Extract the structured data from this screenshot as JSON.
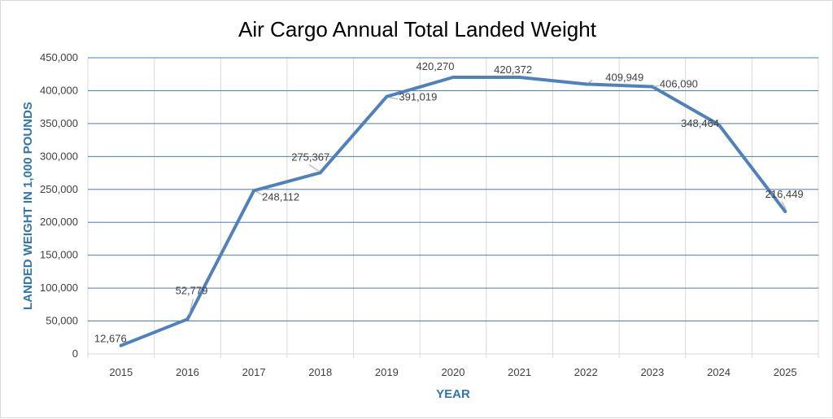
{
  "chart_data": {
    "type": "line",
    "title": "Air Cargo Annual Total Landed Weight",
    "xlabel": "YEAR",
    "ylabel": "LANDED WEIGHT IN 1,000 POUNDS",
    "categories": [
      "2015",
      "2016",
      "2017",
      "2018",
      "2019",
      "2020",
      "2021",
      "2022",
      "2023",
      "2024",
      "2025"
    ],
    "values": [
      12676,
      52779,
      248112,
      275367,
      391019,
      420270,
      420372,
      409949,
      406090,
      348464,
      216449
    ],
    "data_labels": [
      "12,676",
      "52,779",
      "248,112",
      "275,367",
      "391,019",
      "420,270",
      "420,372",
      "409,949",
      "406,090",
      "348,464",
      "216,449"
    ],
    "ylim": [
      0,
      450000
    ],
    "y_ticks": [
      "0",
      "50,000",
      "100,000",
      "150,000",
      "200,000",
      "250,000",
      "300,000",
      "350,000",
      "400,000",
      "450,000"
    ],
    "grid": true,
    "legend": "none",
    "colors": {
      "line": "#4f81bd",
      "grid_horizontal": "#4a7ebb",
      "grid_vertical": "#d9d9d9",
      "axis_title": "#2e75b6",
      "leader": "#a6a6a6"
    }
  }
}
